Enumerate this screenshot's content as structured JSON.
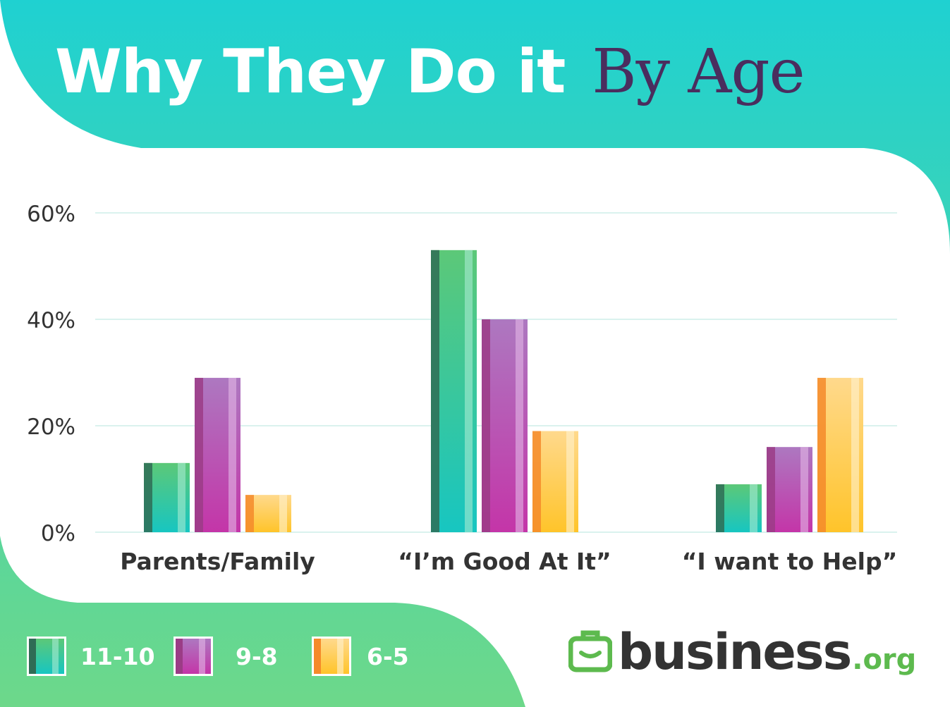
{
  "title": {
    "main": "Why They Do it",
    "accent": "By Age",
    "accent_color": "#4a2d5e"
  },
  "chart_data": {
    "type": "bar",
    "categories": [
      "Parents/Family",
      "“I’m Good At It”",
      "“I want to Help”"
    ],
    "series": [
      {
        "name": "11-10",
        "values": [
          13,
          53,
          9
        ],
        "colors": {
          "dark": "#2f6c55",
          "top": "#5cc878",
          "bottom": "#17c6c1",
          "light": "#a8ebd2"
        }
      },
      {
        "name": "9-8",
        "values": [
          29,
          40,
          16
        ],
        "colors": {
          "dark": "#9b3c86",
          "top": "#ad78c0",
          "bottom": "#c435a8",
          "light": "#e2b8e6"
        }
      },
      {
        "name": "6-5",
        "values": [
          7,
          19,
          29
        ],
        "colors": {
          "dark": "#f58a2a",
          "top": "#ffd98c",
          "bottom": "#ffc42a",
          "light": "#fff2cf"
        }
      }
    ],
    "yticks": [
      "0%",
      "20%",
      "40%",
      "60%"
    ],
    "ylim": [
      0,
      60
    ],
    "ylabel": "",
    "xlabel": "",
    "grid": true,
    "legend": "bottom-left"
  },
  "logo": {
    "text": "business",
    "tld": ".org",
    "icon": "briefcase-icon",
    "color": "#5dba4e"
  },
  "colors": {
    "bg_top": "#1fd1d1",
    "bg_bottom": "#6dd88a",
    "text_dark": "#333333",
    "grid": "#cdeee8"
  }
}
